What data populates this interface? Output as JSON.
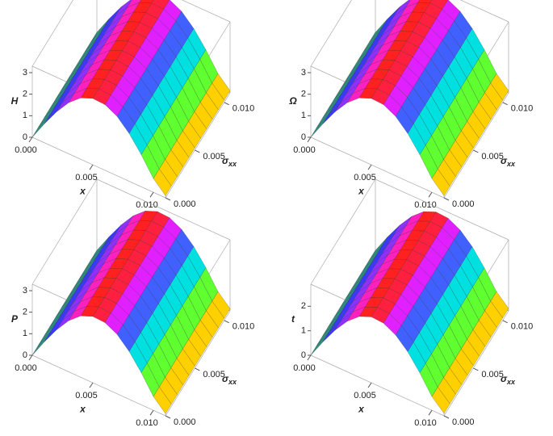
{
  "colormap": [
    "#2f8f80",
    "#3a3aff",
    "#9030ff",
    "#ff20c0",
    "#ff2020",
    "#ff2040",
    "#e020ff",
    "#4060ff",
    "#00e0e0",
    "#60ff30",
    "#ffd000"
  ],
  "chart_data": [
    {
      "type": "surface3d",
      "zlabel": "H",
      "xlabel": "x",
      "ylabel": "σ",
      "ylabel_sub": "xx",
      "x": [
        0,
        0.001,
        0.002,
        0.003,
        0.004,
        0.005,
        0.006,
        0.007,
        0.008,
        0.009,
        0.01,
        0.011
      ],
      "y": [
        0,
        0.001,
        0.002,
        0.003,
        0.004,
        0.005,
        0.006,
        0.007,
        0.008,
        0.009,
        0.01,
        0.011
      ],
      "z": [
        0,
        0.88,
        1.69,
        2.37,
        2.85,
        3.08,
        3.05,
        2.76,
        2.22,
        1.49,
        0.64,
        0.1
      ],
      "xlim": [
        0,
        0.011
      ],
      "ylim": [
        0,
        0.011
      ],
      "zlim": [
        0,
        3.3
      ],
      "xticks": [
        {
          "value": 0,
          "label": "0.000"
        },
        {
          "value": 0.005,
          "label": "0.005"
        },
        {
          "value": 0.01,
          "label": "0.010"
        }
      ],
      "yticks": [
        {
          "value": 0,
          "label": "0.000"
        },
        {
          "value": 0.005,
          "label": "0.005"
        },
        {
          "value": 0.01,
          "label": "0.010"
        }
      ],
      "zticks": [
        0,
        1,
        2,
        3
      ]
    },
    {
      "type": "surface3d",
      "zlabel": "Ω",
      "xlabel": "x",
      "ylabel": "σ",
      "ylabel_sub": "xx",
      "x": [
        0,
        0.001,
        0.002,
        0.003,
        0.004,
        0.005,
        0.006,
        0.007,
        0.008,
        0.009,
        0.01,
        0.011
      ],
      "y": [
        0,
        0.001,
        0.002,
        0.003,
        0.004,
        0.005,
        0.006,
        0.007,
        0.008,
        0.009,
        0.01,
        0.011
      ],
      "z": [
        0,
        0.88,
        1.69,
        2.37,
        2.85,
        3.08,
        3.05,
        2.76,
        2.22,
        1.49,
        0.64,
        0.1
      ],
      "xlim": [
        0,
        0.011
      ],
      "ylim": [
        0,
        0.011
      ],
      "zlim": [
        0,
        3.3
      ],
      "xticks": [
        {
          "value": 0,
          "label": "0.000"
        },
        {
          "value": 0.005,
          "label": "0.005"
        },
        {
          "value": 0.01,
          "label": "0.010"
        }
      ],
      "yticks": [
        {
          "value": 0,
          "label": "0.000"
        },
        {
          "value": 0.005,
          "label": "0.005"
        },
        {
          "value": 0.01,
          "label": "0.010"
        }
      ],
      "zticks": [
        0,
        1,
        2,
        3
      ]
    },
    {
      "type": "surface3d",
      "zlabel": "P",
      "xlabel": "x",
      "ylabel": "σ",
      "ylabel_sub": "xx",
      "x": [
        0,
        0.001,
        0.002,
        0.003,
        0.004,
        0.005,
        0.006,
        0.007,
        0.008,
        0.009,
        0.01,
        0.011
      ],
      "y": [
        0,
        0.001,
        0.002,
        0.003,
        0.004,
        0.005,
        0.006,
        0.007,
        0.008,
        0.009,
        0.01,
        0.011
      ],
      "z": [
        0,
        0.88,
        1.69,
        2.37,
        2.85,
        3.08,
        3.05,
        2.76,
        2.22,
        1.49,
        0.64,
        0.1
      ],
      "xlim": [
        0,
        0.011
      ],
      "ylim": [
        0,
        0.011
      ],
      "zlim": [
        0,
        3.3
      ],
      "xticks": [
        {
          "value": 0,
          "label": "0.000"
        },
        {
          "value": 0.005,
          "label": "0.005"
        },
        {
          "value": 0.01,
          "label": "0.010"
        }
      ],
      "yticks": [
        {
          "value": 0,
          "label": "0.000"
        },
        {
          "value": 0.005,
          "label": "0.005"
        },
        {
          "value": 0.01,
          "label": "0.010"
        }
      ],
      "zticks": [
        0,
        1,
        2,
        3
      ]
    },
    {
      "type": "surface3d",
      "zlabel": "t",
      "xlabel": "x",
      "ylabel": "σ",
      "ylabel_sub": "xx",
      "x": [
        0,
        0.001,
        0.002,
        0.003,
        0.004,
        0.005,
        0.006,
        0.007,
        0.008,
        0.009,
        0.01,
        0.011
      ],
      "y": [
        0,
        0.001,
        0.002,
        0.003,
        0.004,
        0.005,
        0.006,
        0.007,
        0.008,
        0.009,
        0.01,
        0.011
      ],
      "z": [
        0,
        0.77,
        1.47,
        2.06,
        2.48,
        2.69,
        2.66,
        2.4,
        1.94,
        1.3,
        0.56,
        0.1
      ],
      "xlim": [
        0,
        0.011
      ],
      "ylim": [
        0,
        0.011
      ],
      "zlim": [
        0,
        2.9
      ],
      "xticks": [
        {
          "value": 0,
          "label": "0.000"
        },
        {
          "value": 0.005,
          "label": "0.005"
        },
        {
          "value": 0.01,
          "label": "0.010"
        }
      ],
      "yticks": [
        {
          "value": 0,
          "label": "0.000"
        },
        {
          "value": 0.005,
          "label": "0.005"
        },
        {
          "value": 0.01,
          "label": "0.010"
        }
      ],
      "zticks": [
        0,
        1,
        2
      ]
    }
  ]
}
